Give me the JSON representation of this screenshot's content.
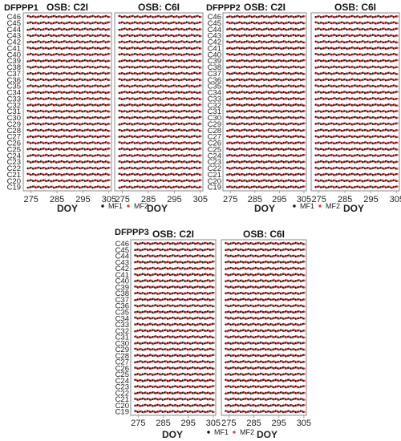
{
  "colors": {
    "MF1": "#111111",
    "MF2": "#e03a3a",
    "frame": "#8a8a8a"
  },
  "chart_data": {
    "type": "scatter",
    "description_of_marks": "MF1 and MF2 available per satellite (C19–C46) per day of year",
    "xlabel": "DOY",
    "xlim": [
      272,
      306
    ],
    "xticks": [
      275,
      285,
      295,
      305
    ],
    "satellites": [
      "C46",
      "C45",
      "C44",
      "C43",
      "C42",
      "C41",
      "C40",
      "C39",
      "C38",
      "C37",
      "C36",
      "C35",
      "C34",
      "C33",
      "C32",
      "C31",
      "C30",
      "C29",
      "C28",
      "C27",
      "C26",
      "C25",
      "C24",
      "C23",
      "C22",
      "C21",
      "C20",
      "C19"
    ],
    "days": [
      274,
      275,
      276,
      277,
      278,
      279,
      280,
      281,
      282,
      283,
      284,
      285,
      286,
      287,
      288,
      289,
      290,
      291,
      292,
      293,
      294,
      295,
      296,
      297,
      298,
      299,
      300,
      301,
      302,
      303,
      304,
      305
    ],
    "legend": [
      {
        "name": "MF1",
        "symbol": "•"
      },
      {
        "name": "MF2",
        "symbol": "•"
      }
    ],
    "groups": [
      {
        "station": "DFPPP1",
        "panels": [
          {
            "title": "OSB: C2I"
          },
          {
            "title": "OSB: C6I"
          }
        ]
      },
      {
        "station": "DFPPP2",
        "panels": [
          {
            "title": "OSB: C2I"
          },
          {
            "title": "OSB: C6I"
          }
        ]
      },
      {
        "station": "DFPPP3",
        "panels": [
          {
            "title": "OSB: C2I"
          },
          {
            "title": "OSB: C6I"
          }
        ]
      }
    ]
  }
}
